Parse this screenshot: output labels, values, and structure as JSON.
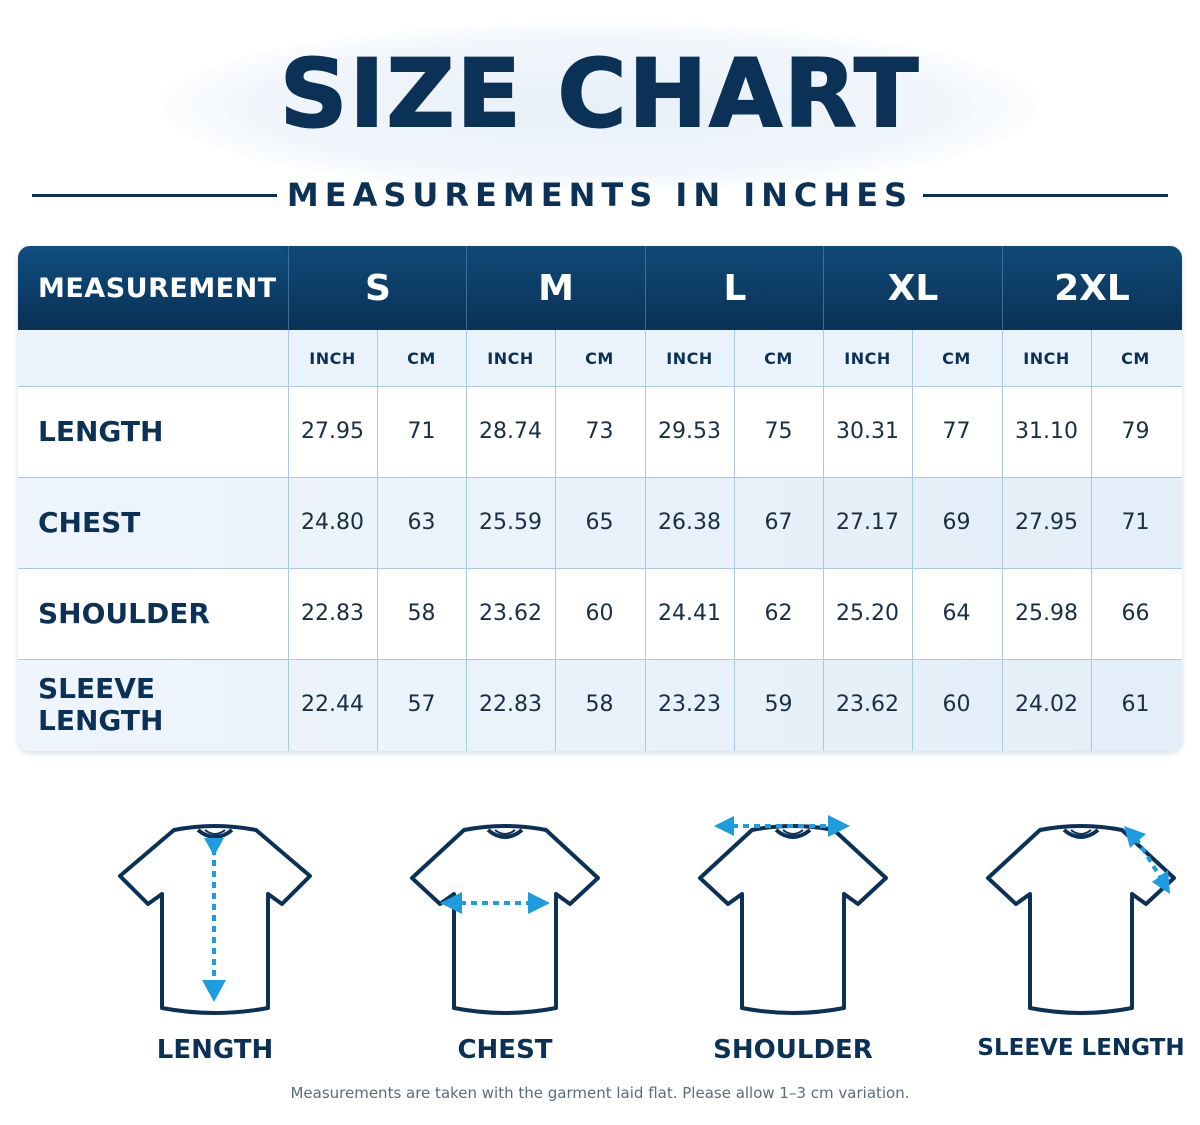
{
  "title": "SIZE CHART",
  "subtitle": "MEASUREMENTS IN INCHES",
  "table": {
    "measurement_header": "MEASUREMENT",
    "sizes": [
      "S",
      "M",
      "L",
      "XL",
      "2XL"
    ],
    "units": [
      "INCH",
      "CM"
    ],
    "rows": [
      {
        "label": "LENGTH",
        "values": [
          "27.95",
          "71",
          "28.74",
          "73",
          "29.53",
          "75",
          "30.31",
          "77",
          "31.10",
          "79"
        ]
      },
      {
        "label": "CHEST",
        "values": [
          "24.80",
          "63",
          "25.59",
          "65",
          "26.38",
          "67",
          "27.17",
          "69",
          "27.95",
          "71"
        ]
      },
      {
        "label": "SHOULDER",
        "values": [
          "22.83",
          "58",
          "23.62",
          "60",
          "24.41",
          "62",
          "25.20",
          "64",
          "25.98",
          "66"
        ]
      },
      {
        "label": "SLEEVE LENGTH",
        "values": [
          "22.44",
          "57",
          "22.83",
          "58",
          "23.23",
          "59",
          "23.62",
          "60",
          "24.02",
          "61"
        ]
      }
    ]
  },
  "diagrams": [
    {
      "label": "LENGTH",
      "icon": "tshirt-length-icon"
    },
    {
      "label": "CHEST",
      "icon": "tshirt-chest-icon"
    },
    {
      "label": "SHOULDER",
      "icon": "tshirt-shoulder-icon"
    },
    {
      "label": "SLEEVE LENGTH",
      "icon": "tshirt-sleeve-icon"
    }
  ],
  "note": "Measurements are taken with the garment laid flat. Please allow 1–3 cm variation.",
  "colors": {
    "navy": "#0b3157",
    "arrow": "#1f9be0",
    "grid": "#a9c9e6",
    "alt_row": "#eaf3fb"
  }
}
